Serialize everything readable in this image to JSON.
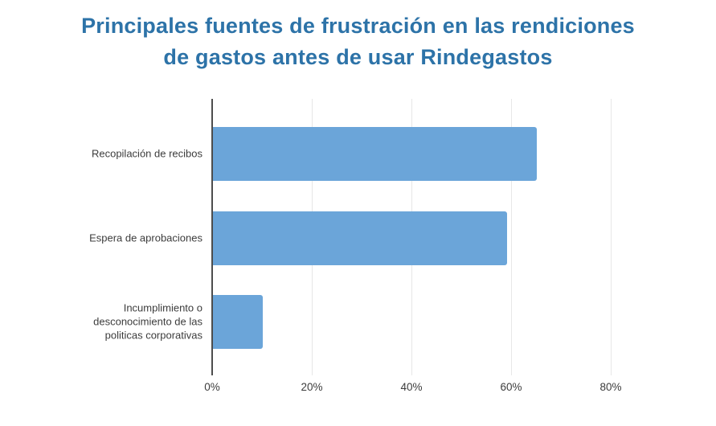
{
  "title_lines": [
    "Principales fuentes de frustración en las rendiciones",
    "de gastos antes de usar Rindegastos"
  ],
  "chart_data": {
    "type": "bar",
    "orientation": "horizontal",
    "title": "Principales fuentes de frustración en las rendiciones de gastos antes de usar Rindegastos",
    "categories": [
      "Recopilación de recibos",
      "Espera de aprobaciones",
      "Incumplimiento o desconocimiento de las politicas corporativas"
    ],
    "values": [
      65,
      59,
      10
    ],
    "unit": "%",
    "x_ticks": [
      "0%",
      "20%",
      "40%",
      "60%",
      "80%"
    ],
    "x_tick_values": [
      0,
      20,
      40,
      60,
      80
    ],
    "xlim": [
      0,
      96
    ],
    "ylabel": "",
    "xlabel": "",
    "grid": "vertical",
    "legend": "none",
    "colors": {
      "bar": "#6ba5d9",
      "title": "#2d73a8",
      "axis_line": "#4d4d4d",
      "gridline": "#e7e7e7",
      "tick_text": "#3c3c3c"
    }
  }
}
